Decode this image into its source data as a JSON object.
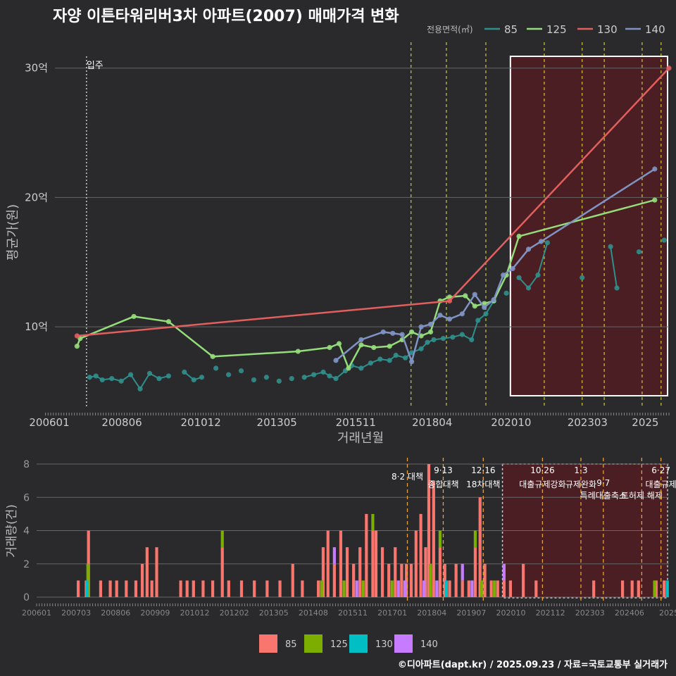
{
  "title": "자양 이튼타워리버3차 아파트(2007) 매매가격 변화",
  "footer": "©디아파트(dapt.kr) / 2025.09.23 / 자료=국토교통부 실거래가",
  "colors": {
    "bg": "#2a2a2c",
    "s85": "#2f8f8c",
    "s125": "#95dc7a",
    "s130": "#e35f5e",
    "s140": "#7f94c4",
    "bar85": "#f8766d",
    "bar125": "#7cae00",
    "bar130": "#00bfc4",
    "bar140": "#c77cff",
    "vline": "#e8e83a",
    "vlineBottom": "#e5a13a",
    "highlight": "#4a1e22"
  },
  "chart_data": [
    {
      "type": "line",
      "title": "자양 이튼타워리버3차 아파트(2007) 매매가격 변화",
      "xlabel": "거래년월",
      "ylabel": "평균가(원)",
      "xlim": [
        2006.3,
        2025.75
      ],
      "ylim": [
        3.8,
        32
      ],
      "yticks": [
        {
          "v": 10,
          "label": "10억"
        },
        {
          "v": 20,
          "label": "20억"
        },
        {
          "v": 30,
          "label": "30억"
        }
      ],
      "xticks": [
        {
          "v": 2006.0,
          "label": "200601"
        },
        {
          "v": 2008.42,
          "label": "200806"
        },
        {
          "v": 2010.92,
          "label": "201012"
        },
        {
          "v": 2013.33,
          "label": "201305"
        },
        {
          "v": 2015.83,
          "label": "201511"
        },
        {
          "v": 2018.25,
          "label": "201804"
        },
        {
          "v": 2020.75,
          "label": "202010"
        },
        {
          "v": 2023.17,
          "label": "202303"
        },
        {
          "v": 2025.0,
          "label": "2025"
        }
      ],
      "legend_title": "전용면적(㎡)",
      "annotation": {
        "x": 2007.3,
        "label": "입주"
      },
      "highlight_range": [
        2020.75,
        2025.75
      ],
      "policy_lines": [
        2017.58,
        2018.7,
        2019.95,
        2021.8,
        2023.0,
        2023.7,
        2024.9,
        2025.5
      ],
      "series": [
        {
          "name": "85",
          "x": [
            2007.4,
            2007.6,
            2007.8,
            2008.1,
            2008.4,
            2008.7,
            2009.0,
            2009.3,
            2009.6,
            2009.9,
            2010.4,
            2010.7,
            2010.95,
            2011.4,
            2011.8,
            2012.2,
            2012.6,
            2013.0,
            2013.4,
            2013.8,
            2014.2,
            2014.5,
            2014.8,
            2015.0,
            2015.2,
            2015.5,
            2015.7,
            2016.0,
            2016.3,
            2016.6,
            2016.9,
            2017.1,
            2017.4,
            2017.6,
            2017.9,
            2018.1,
            2018.3,
            2018.6,
            2018.9,
            2019.2,
            2019.5,
            2019.7,
            2019.95,
            2020.2,
            2020.6,
            2021.0,
            2021.3,
            2021.6,
            2021.9,
            2023.0,
            2023.9,
            2024.1,
            2024.8,
            2025.6
          ],
          "y": [
            6.1,
            6.2,
            5.9,
            6.0,
            5.8,
            6.3,
            5.2,
            6.4,
            6.0,
            6.2,
            6.5,
            5.9,
            6.1,
            6.8,
            6.3,
            6.6,
            5.9,
            6.1,
            5.8,
            6.0,
            6.1,
            6.3,
            6.5,
            6.2,
            6.0,
            6.6,
            7.0,
            6.8,
            7.2,
            7.5,
            7.4,
            7.8,
            7.6,
            8.0,
            8.3,
            8.8,
            9.0,
            9.1,
            9.2,
            9.4,
            9.0,
            10.5,
            11.0,
            12.0,
            12.6,
            13.8,
            13.0,
            14.0,
            16.5,
            13.8,
            16.2,
            13.0,
            15.8,
            16.7
          ]
        },
        {
          "name": "125",
          "x": [
            2007.0,
            2007.1,
            2008.8,
            2009.9,
            2011.3,
            2014.0,
            2015.0,
            2015.3,
            2015.6,
            2016.0,
            2016.4,
            2016.9,
            2017.3,
            2017.6,
            2017.9,
            2018.2,
            2018.5,
            2018.8,
            2019.3,
            2019.6,
            2019.9,
            2020.2,
            2020.6,
            2021.0,
            2025.3
          ],
          "y": [
            8.5,
            9.1,
            10.8,
            10.4,
            7.7,
            8.1,
            8.4,
            8.7,
            6.8,
            8.6,
            8.4,
            8.5,
            9.0,
            9.6,
            9.3,
            9.6,
            12.0,
            12.3,
            12.4,
            11.6,
            11.8,
            12.0,
            14.0,
            17.0,
            19.8
          ]
        },
        {
          "name": "130",
          "x": [
            2007.0,
            2018.8,
            2025.75
          ],
          "y": [
            9.3,
            12.0,
            30.0
          ]
        },
        {
          "name": "140",
          "x": [
            2015.2,
            2016.0,
            2016.7,
            2017.0,
            2017.3,
            2017.6,
            2017.9,
            2018.2,
            2018.5,
            2018.8,
            2019.2,
            2019.6,
            2019.9,
            2020.2,
            2020.5,
            2020.8,
            2021.3,
            2021.7,
            2025.3
          ],
          "y": [
            7.4,
            9.0,
            9.6,
            9.5,
            9.4,
            7.3,
            10.0,
            10.2,
            10.9,
            10.6,
            11.0,
            12.5,
            11.5,
            12.1,
            14.0,
            14.5,
            16.0,
            16.6,
            22.2
          ]
        }
      ]
    },
    {
      "type": "bar",
      "stacked": true,
      "ylabel": "거래량(건)",
      "ylim": [
        0,
        8
      ],
      "yticks": [
        0,
        2,
        4,
        6,
        8
      ],
      "xticks": [
        "200601",
        "200703",
        "200806",
        "200909",
        "201012",
        "201202",
        "201305",
        "201408",
        "201511",
        "201701",
        "201804",
        "201907",
        "202010",
        "202112",
        "202303",
        "202406",
        "2025"
      ],
      "policy_events": [
        {
          "date": "8·2 대책",
          "x": 2017.58
        },
        {
          "date": "9·13",
          "label": "종합대책",
          "x": 2018.7
        },
        {
          "date": "12·16",
          "label": "18차대책",
          "x": 2019.95
        },
        {
          "date": "10·26",
          "label": "대출규제강화",
          "x": 2021.8
        },
        {
          "date": "1·3",
          "label": "규제완화",
          "x": 2023.0
        },
        {
          "date": "9·7",
          "label": "특례대출축소",
          "x": 2023.7
        },
        {
          "date": "",
          "label": "토허제 해제",
          "x": 2024.9
        },
        {
          "date": "6·27",
          "label": "대출규제",
          "x": 2025.5
        }
      ],
      "series": [
        {
          "name": "85",
          "values": [
            [
              2007.3,
              1
            ],
            [
              2007.55,
              1
            ],
            [
              2007.62,
              4
            ],
            [
              2008.0,
              1
            ],
            [
              2008.3,
              1
            ],
            [
              2008.5,
              1
            ],
            [
              2008.8,
              1
            ],
            [
              2009.1,
              1
            ],
            [
              2009.3,
              2
            ],
            [
              2009.45,
              3
            ],
            [
              2009.6,
              1
            ],
            [
              2009.75,
              3
            ],
            [
              2010.5,
              1
            ],
            [
              2010.7,
              1
            ],
            [
              2010.9,
              1
            ],
            [
              2011.2,
              1
            ],
            [
              2011.5,
              1
            ],
            [
              2011.8,
              3
            ],
            [
              2012.0,
              1
            ],
            [
              2012.4,
              1
            ],
            [
              2012.8,
              1
            ],
            [
              2013.2,
              1
            ],
            [
              2013.6,
              1
            ],
            [
              2014.0,
              2
            ],
            [
              2014.3,
              1
            ],
            [
              2014.8,
              1
            ],
            [
              2014.95,
              3
            ],
            [
              2015.1,
              4
            ],
            [
              2015.3,
              2
            ],
            [
              2015.5,
              4
            ],
            [
              2015.7,
              3
            ],
            [
              2015.9,
              2
            ],
            [
              2016.1,
              3
            ],
            [
              2016.3,
              5
            ],
            [
              2016.5,
              4
            ],
            [
              2016.6,
              4
            ],
            [
              2016.8,
              3
            ],
            [
              2017.0,
              2
            ],
            [
              2017.2,
              3
            ],
            [
              2017.4,
              2
            ],
            [
              2017.55,
              2
            ],
            [
              2017.7,
              2
            ],
            [
              2017.85,
              4
            ],
            [
              2018.0,
              5
            ],
            [
              2018.15,
              3
            ],
            [
              2018.25,
              8
            ],
            [
              2018.4,
              7
            ],
            [
              2018.6,
              3
            ],
            [
              2018.75,
              2
            ],
            [
              2018.9,
              1
            ],
            [
              2019.1,
              2
            ],
            [
              2019.3,
              1
            ],
            [
              2019.5,
              1
            ],
            [
              2019.7,
              3
            ],
            [
              2019.85,
              6
            ],
            [
              2020.0,
              2
            ],
            [
              2020.2,
              1
            ],
            [
              2020.4,
              1
            ],
            [
              2020.6,
              1
            ],
            [
              2020.8,
              1
            ],
            [
              2021.2,
              2
            ],
            [
              2021.6,
              1
            ],
            [
              2023.4,
              1
            ],
            [
              2024.3,
              1
            ],
            [
              2024.6,
              1
            ],
            [
              2024.8,
              1
            ],
            [
              2025.35,
              1
            ],
            [
              2025.6,
              1
            ]
          ]
        },
        {
          "name": "125",
          "values": [
            [
              2007.6,
              2
            ],
            [
              2011.8,
              1
            ],
            [
              2014.9,
              1
            ],
            [
              2015.6,
              1
            ],
            [
              2016.2,
              1
            ],
            [
              2016.5,
              1
            ],
            [
              2017.1,
              1
            ],
            [
              2018.3,
              2
            ],
            [
              2018.6,
              1
            ],
            [
              2019.7,
              1
            ],
            [
              2019.9,
              1
            ],
            [
              2020.3,
              1
            ],
            [
              2025.3,
              1
            ]
          ]
        },
        {
          "name": "130",
          "values": [
            [
              2007.58,
              1
            ],
            [
              2018.8,
              1
            ],
            [
              2025.7,
              1
            ]
          ]
        },
        {
          "name": "140",
          "values": [
            [
              2015.3,
              1
            ],
            [
              2016.0,
              1
            ],
            [
              2017.3,
              1
            ],
            [
              2017.5,
              1
            ],
            [
              2018.1,
              1
            ],
            [
              2018.5,
              1
            ],
            [
              2019.3,
              1
            ],
            [
              2019.6,
              1
            ],
            [
              2020.6,
              1
            ]
          ]
        }
      ]
    }
  ]
}
